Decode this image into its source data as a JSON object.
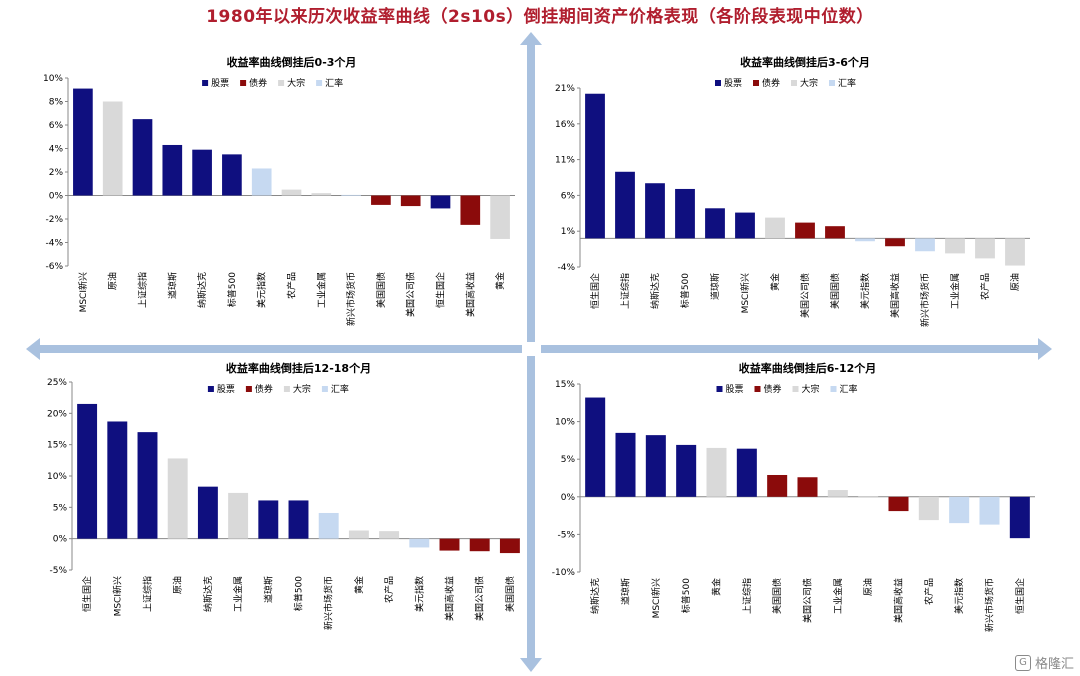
{
  "title": "1980年以来历次收益率曲线（2s10s）倒挂期间资产价格表现（各阶段表现中位数）",
  "legend": [
    {
      "label": "股票",
      "color": "#0f0f7f"
    },
    {
      "label": "债券",
      "color": "#8b0b0b"
    },
    {
      "label": "大宗",
      "color": "#d9d9d9"
    },
    {
      "label": "汇率",
      "color": "#c6d9f1"
    }
  ],
  "watermark": "格隆汇",
  "chart_data": [
    {
      "type": "bar",
      "title": "收益率曲线倒挂后0-3个月",
      "ylim": [
        -6,
        10
      ],
      "yticks": [
        -6,
        -4,
        -2,
        0,
        2,
        4,
        6,
        8,
        10
      ],
      "ytick_labels": [
        "-6%",
        "-4%",
        "-2%",
        "0%",
        "2%",
        "4%",
        "6%",
        "8%",
        "10%"
      ],
      "categories": [
        "MSCI新兴",
        "原油",
        "上证综指",
        "道琼斯",
        "纳斯达克",
        "标普500",
        "美元指数",
        "农产品",
        "工业金属",
        "新兴市场货币",
        "美国国债",
        "美国公司债",
        "恒生国企",
        "美国高收益",
        "黄金"
      ],
      "values": [
        9.1,
        8.0,
        6.5,
        4.3,
        3.9,
        3.5,
        2.3,
        0.5,
        0.2,
        0.05,
        -0.8,
        -0.9,
        -1.1,
        -2.5,
        -3.7
      ],
      "groups": [
        "股票",
        "大宗",
        "股票",
        "股票",
        "股票",
        "股票",
        "汇率",
        "大宗",
        "大宗",
        "汇率",
        "债券",
        "债券",
        "股票",
        "债券",
        "大宗"
      ]
    },
    {
      "type": "bar",
      "title": "收益率曲线倒挂后3-6个月",
      "ylim": [
        -4,
        21
      ],
      "yticks": [
        -4,
        1,
        6,
        11,
        16,
        21
      ],
      "ytick_labels": [
        "-4%",
        "1%",
        "6%",
        "11%",
        "16%",
        "21%"
      ],
      "categories": [
        "恒生国企",
        "上证综指",
        "纳斯达克",
        "标普500",
        "道琼斯",
        "MSCI新兴",
        "黄金",
        "美国公司债",
        "美国国债",
        "美元指数",
        "美国高收益",
        "新兴市场货币",
        "工业金属",
        "农产品",
        "原油"
      ],
      "values": [
        20.2,
        9.3,
        7.7,
        6.9,
        4.2,
        3.6,
        2.9,
        2.2,
        1.7,
        -0.4,
        -1.1,
        -1.8,
        -2.1,
        -2.8,
        -3.8
      ],
      "groups": [
        "股票",
        "股票",
        "股票",
        "股票",
        "股票",
        "股票",
        "大宗",
        "债券",
        "债券",
        "汇率",
        "债券",
        "汇率",
        "大宗",
        "大宗",
        "大宗"
      ]
    },
    {
      "type": "bar",
      "title": "收益率曲线倒挂后12-18个月",
      "ylim": [
        -5,
        25
      ],
      "yticks": [
        -5,
        0,
        5,
        10,
        15,
        20,
        25
      ],
      "ytick_labels": [
        "-5%",
        "0%",
        "5%",
        "10%",
        "15%",
        "20%",
        "25%"
      ],
      "categories": [
        "恒生国企",
        "MSCI新兴",
        "上证综指",
        "原油",
        "纳斯达克",
        "工业金属",
        "道琼斯",
        "标普500",
        "新兴市场货币",
        "黄金",
        "农产品",
        "美元指数",
        "美国高收益",
        "美国公司债",
        "美国国债"
      ],
      "values": [
        21.5,
        18.7,
        17.0,
        12.8,
        8.3,
        7.3,
        6.1,
        6.1,
        4.1,
        1.3,
        1.2,
        -1.4,
        -1.9,
        -2.0,
        -2.3
      ],
      "groups": [
        "股票",
        "股票",
        "股票",
        "大宗",
        "股票",
        "大宗",
        "股票",
        "股票",
        "汇率",
        "大宗",
        "大宗",
        "汇率",
        "债券",
        "债券",
        "债券"
      ]
    },
    {
      "type": "bar",
      "title": "收益率曲线倒挂后6-12个月",
      "ylim": [
        -10,
        15
      ],
      "yticks": [
        -10,
        -5,
        0,
        5,
        10,
        15
      ],
      "ytick_labels": [
        "-10%",
        "-5%",
        "0%",
        "5%",
        "10%",
        "15%"
      ],
      "categories": [
        "纳斯达克",
        "道琼斯",
        "MSCI新兴",
        "标普500",
        "黄金",
        "上证综指",
        "美国国债",
        "美国公司债",
        "工业金属",
        "原油",
        "美国高收益",
        "农产品",
        "美元指数",
        "新兴市场货币",
        "恒生国企"
      ],
      "values": [
        13.2,
        8.5,
        8.2,
        6.9,
        6.5,
        6.4,
        2.9,
        2.6,
        0.9,
        0.1,
        -1.9,
        -3.1,
        -3.5,
        -3.7,
        -5.5
      ],
      "groups": [
        "股票",
        "股票",
        "股票",
        "股票",
        "大宗",
        "股票",
        "债券",
        "债券",
        "大宗",
        "大宗",
        "债券",
        "大宗",
        "汇率",
        "汇率",
        "股票"
      ]
    }
  ]
}
